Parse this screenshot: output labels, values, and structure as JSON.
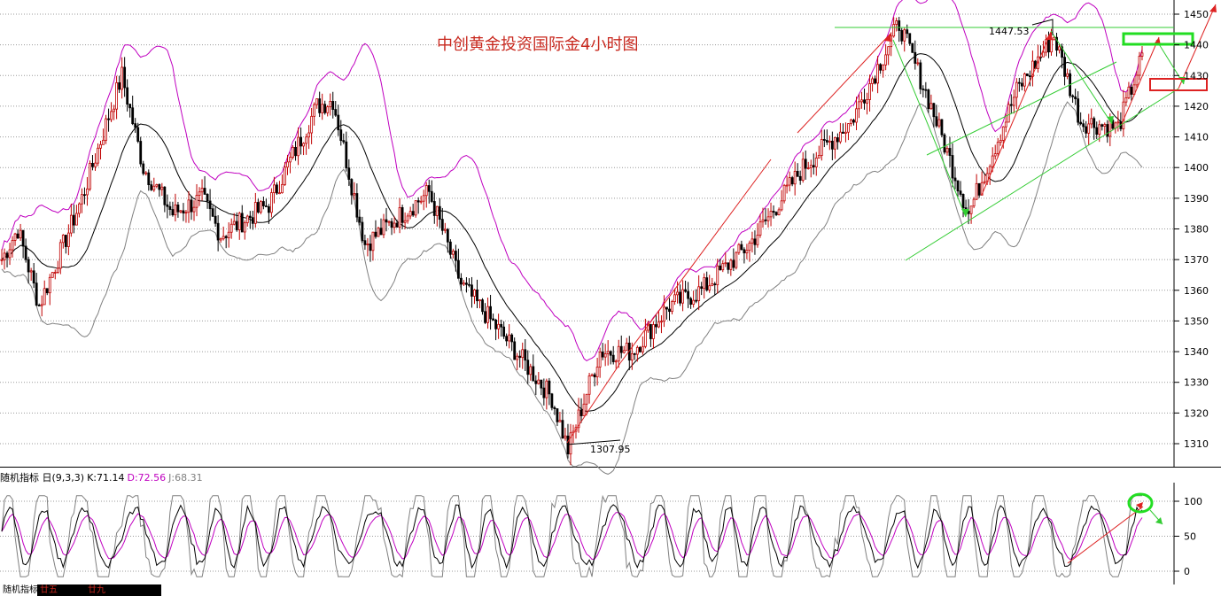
{
  "chart_data": [
    {
      "type": "candlestick",
      "title": "中创黄金投资国际金4小时图",
      "ylim": [
        1300,
        1455
      ],
      "y_ticks": [
        1310,
        1320,
        1330,
        1340,
        1350,
        1360,
        1370,
        1380,
        1390,
        1400,
        1410,
        1420,
        1430,
        1440,
        1450
      ],
      "grid": true,
      "overlays": [
        "bollinger-upper",
        "bollinger-mid",
        "bollinger-lower"
      ],
      "annotations": [
        {
          "label": "1447.53",
          "value": 1447.53
        },
        {
          "label": "1307.95",
          "value": 1307.95
        }
      ],
      "price_path": [
        {
          "bar": 0,
          "price": 1370
        },
        {
          "bar": 6,
          "price": 1380
        },
        {
          "bar": 14,
          "price": 1355
        },
        {
          "bar": 30,
          "price": 1390
        },
        {
          "bar": 45,
          "price": 1430
        },
        {
          "bar": 53,
          "price": 1400
        },
        {
          "bar": 64,
          "price": 1385
        },
        {
          "bar": 75,
          "price": 1390
        },
        {
          "bar": 82,
          "price": 1378
        },
        {
          "bar": 100,
          "price": 1388
        },
        {
          "bar": 118,
          "price": 1420
        },
        {
          "bar": 124,
          "price": 1422
        },
        {
          "bar": 136,
          "price": 1375
        },
        {
          "bar": 150,
          "price": 1385
        },
        {
          "bar": 160,
          "price": 1392
        },
        {
          "bar": 172,
          "price": 1362
        },
        {
          "bar": 188,
          "price": 1345
        },
        {
          "bar": 206,
          "price": 1325
        },
        {
          "bar": 212,
          "price": 1308
        },
        {
          "bar": 224,
          "price": 1340
        },
        {
          "bar": 236,
          "price": 1340
        },
        {
          "bar": 250,
          "price": 1355
        },
        {
          "bar": 262,
          "price": 1360
        },
        {
          "bar": 280,
          "price": 1375
        },
        {
          "bar": 300,
          "price": 1400
        },
        {
          "bar": 318,
          "price": 1415
        },
        {
          "bar": 336,
          "price": 1447
        },
        {
          "bar": 348,
          "price": 1420
        },
        {
          "bar": 362,
          "price": 1385
        },
        {
          "bar": 380,
          "price": 1425
        },
        {
          "bar": 394,
          "price": 1443
        },
        {
          "bar": 404,
          "price": 1415
        },
        {
          "bar": 418,
          "price": 1413
        },
        {
          "bar": 427,
          "price": 1436
        }
      ]
    },
    {
      "type": "line",
      "indicator_label": "随机指标 日(9,3,3)",
      "series": [
        {
          "name": "K:71.14",
          "color": "#000000"
        },
        {
          "name": "D:72.56",
          "color": "#c000c0"
        },
        {
          "name": "J:68.31",
          "color": "#808080"
        }
      ],
      "ylim": [
        -10,
        110
      ],
      "y_ticks": [
        0,
        50,
        100
      ]
    }
  ],
  "bottom_tabs": [
    "随机指标4",
    "廿五",
    "",
    "廿九"
  ]
}
